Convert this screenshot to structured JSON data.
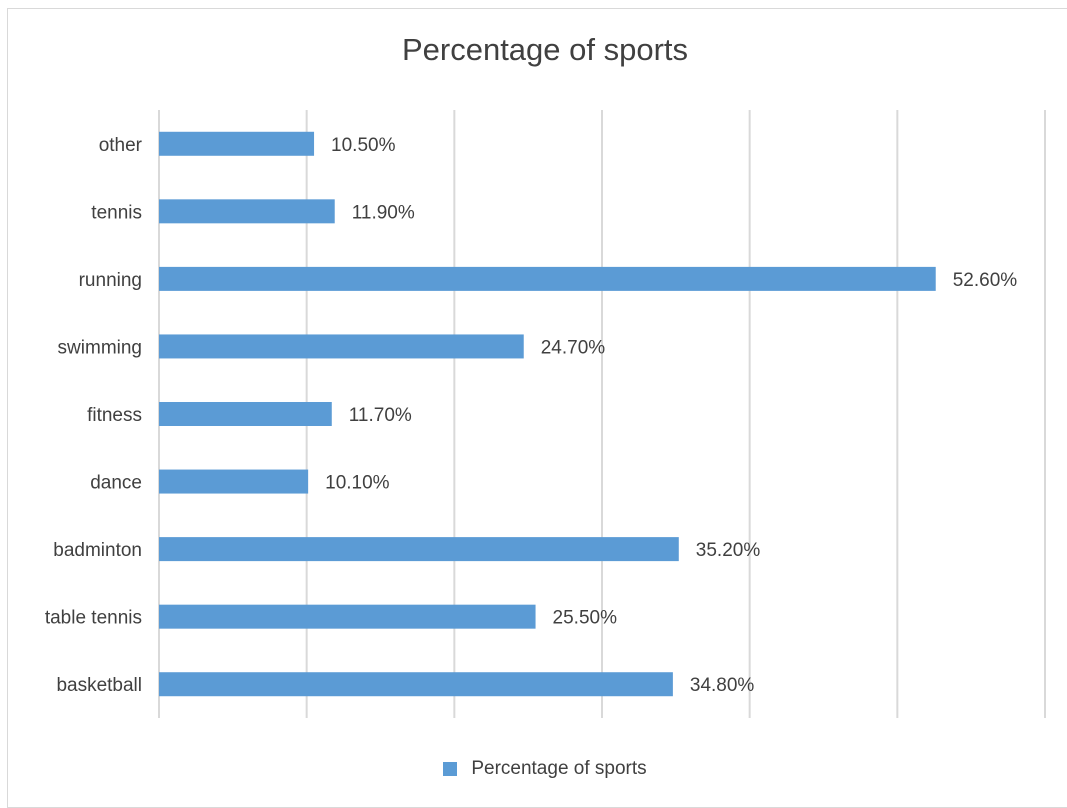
{
  "chart_data": {
    "type": "bar",
    "orientation": "horizontal",
    "title": "Percentage of sports",
    "categories": [
      "basketball",
      "table tennis",
      "badminton",
      "dance",
      "fitness",
      "swimming",
      "running",
      "tennis",
      "other"
    ],
    "series": [
      {
        "name": "Percentage of sports",
        "values": [
          34.8,
          25.5,
          35.2,
          10.1,
          11.7,
          24.7,
          52.6,
          11.9,
          10.5
        ],
        "labels": [
          "34.80%",
          "25.50%",
          "35.20%",
          "10.10%",
          "11.70%",
          "24.70%",
          "52.60%",
          "11.90%",
          "10.50%"
        ]
      }
    ],
    "xlim": [
      0,
      60
    ],
    "x_gridlines": [
      0,
      10,
      20,
      30,
      40,
      50,
      60
    ],
    "grid": true,
    "legend_position": "bottom",
    "bar_color": "#5b9bd5",
    "grid_color": "#d9d9d9"
  }
}
